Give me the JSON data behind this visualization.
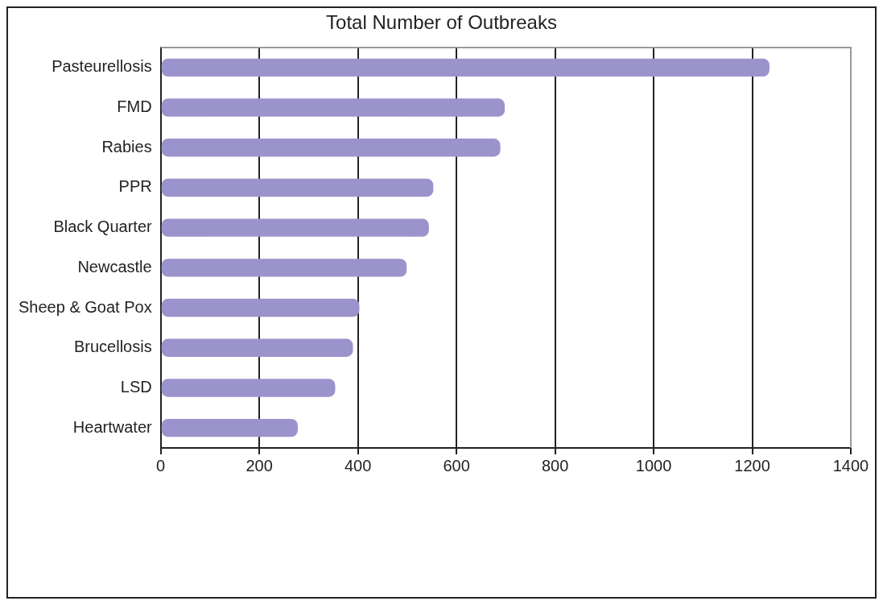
{
  "chart_data": {
    "type": "bar",
    "orientation": "horizontal",
    "title": "Total Number of Outbreaks",
    "categories": [
      "Pasteurellosis",
      "FMD",
      "Rabies",
      "PPR",
      "Black Quarter",
      "Newcastle",
      "Sheep & Goat Pox",
      "Brucellosis",
      "LSD",
      "Heartwater"
    ],
    "values": [
      1235,
      698,
      689,
      553,
      544,
      499,
      403,
      390,
      354,
      278
    ],
    "color": "#9b93cc",
    "xlim": [
      0,
      1400
    ],
    "xticks": [
      0,
      200,
      400,
      600,
      800,
      1000,
      1200,
      1400
    ],
    "grid": "x",
    "legend": false
  }
}
